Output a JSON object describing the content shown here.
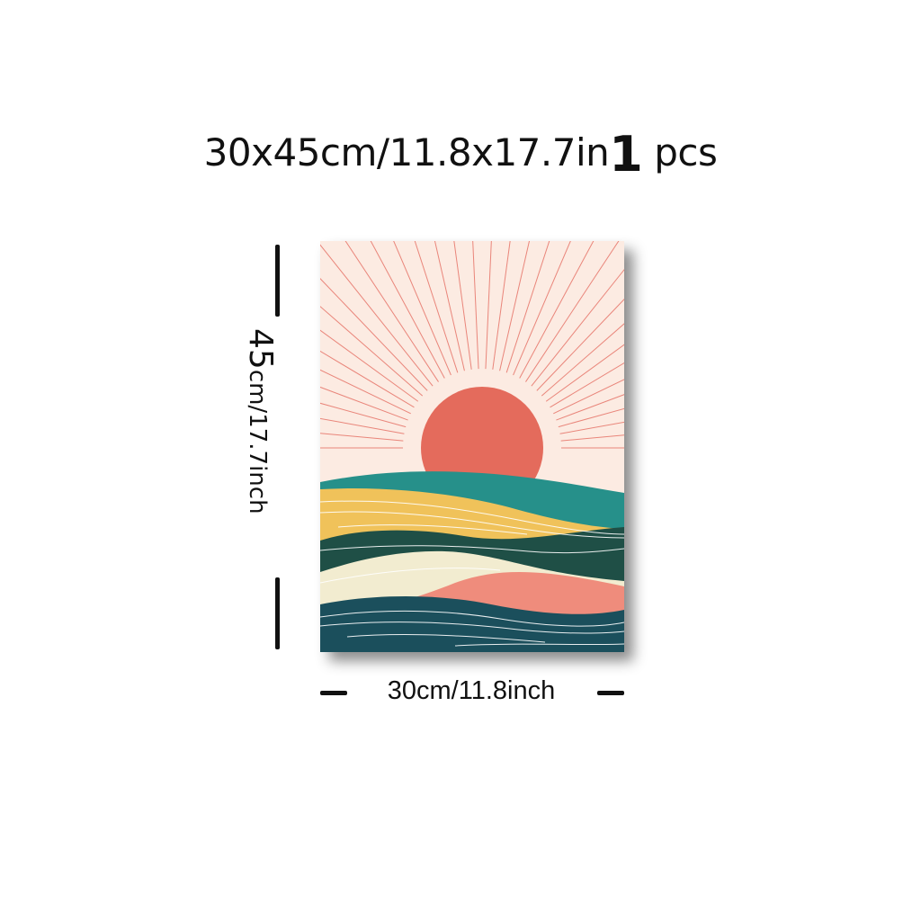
{
  "title": {
    "size_text": "30x45cm/11.8x17.7in",
    "quantity": "1",
    "unit": "pcs"
  },
  "dimension_height": {
    "value": "45",
    "text": "cm/17.7inch"
  },
  "dimension_width": {
    "text": "30cm/11.8inch"
  },
  "colors": {
    "background": "#fcebe2",
    "sun": "#e46b5c",
    "teal": "#26908a",
    "yellow": "#f0c25a",
    "dark_green": "#1f4f46",
    "cream": "#f2ecd0",
    "salmon": "#ef8c7c",
    "navy_teal": "#1b4f5c"
  }
}
